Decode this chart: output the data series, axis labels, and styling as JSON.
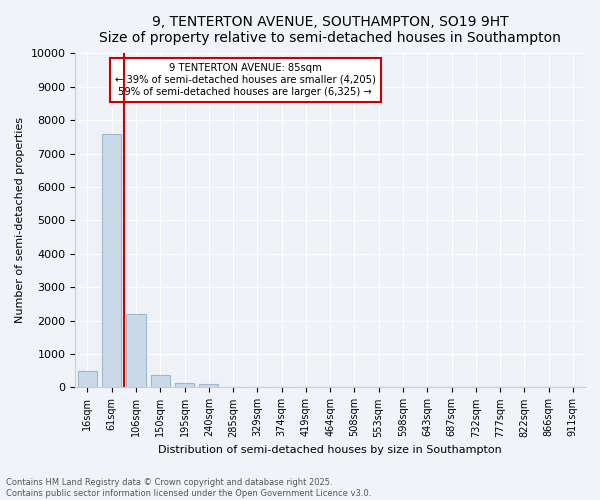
{
  "title": "9, TENTERTON AVENUE, SOUTHAMPTON, SO19 9HT",
  "subtitle": "Size of property relative to semi-detached houses in Southampton",
  "xlabel": "Distribution of semi-detached houses by size in Southampton",
  "ylabel": "Number of semi-detached properties",
  "categories": [
    "16sqm",
    "61sqm",
    "106sqm",
    "150sqm",
    "195sqm",
    "240sqm",
    "285sqm",
    "329sqm",
    "374sqm",
    "419sqm",
    "464sqm",
    "508sqm",
    "553sqm",
    "598sqm",
    "643sqm",
    "687sqm",
    "732sqm",
    "777sqm",
    "822sqm",
    "866sqm",
    "911sqm"
  ],
  "values": [
    500,
    7600,
    2200,
    380,
    130,
    100,
    0,
    0,
    0,
    0,
    0,
    0,
    0,
    0,
    0,
    0,
    0,
    0,
    0,
    0,
    0
  ],
  "bar_color": "#c9d9e8",
  "bar_edgecolor": "#a0b8cc",
  "vline_x": 1.5,
  "vline_color": "#cc0000",
  "annotation_title": "9 TENTERTON AVENUE: 85sqm",
  "annotation_line1": "← 39% of semi-detached houses are smaller (4,205)",
  "annotation_line2": "59% of semi-detached houses are larger (6,325) →",
  "annotation_box_color": "#cc0000",
  "ylim": [
    0,
    10000
  ],
  "yticks": [
    0,
    1000,
    2000,
    3000,
    4000,
    5000,
    6000,
    7000,
    8000,
    9000,
    10000
  ],
  "footer_line1": "Contains HM Land Registry data © Crown copyright and database right 2025.",
  "footer_line2": "Contains public sector information licensed under the Open Government Licence v3.0.",
  "bg_color": "#f0f4f8",
  "plot_bg_color": "#eef2f7"
}
